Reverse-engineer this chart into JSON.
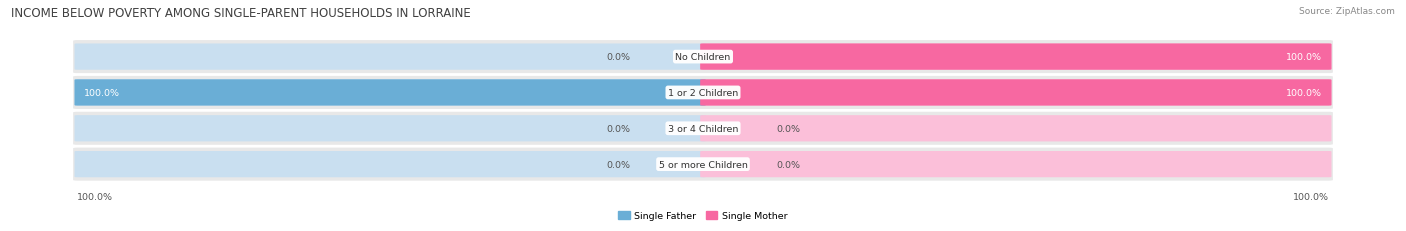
{
  "title": "INCOME BELOW POVERTY AMONG SINGLE-PARENT HOUSEHOLDS IN LORRAINE",
  "source": "Source: ZipAtlas.com",
  "categories": [
    "No Children",
    "1 or 2 Children",
    "3 or 4 Children",
    "5 or more Children"
  ],
  "single_father": [
    0.0,
    100.0,
    0.0,
    0.0
  ],
  "single_mother": [
    100.0,
    100.0,
    0.0,
    0.0
  ],
  "father_color": "#6aaed6",
  "mother_color": "#f768a1",
  "father_light": "#c9dff0",
  "mother_light": "#fbbfd9",
  "row_bg": "#e8e8e8",
  "title_fontsize": 8.5,
  "label_fontsize": 6.8,
  "value_fontsize": 6.8,
  "source_fontsize": 6.5,
  "figsize": [
    14.06,
    2.32
  ],
  "dpi": 100
}
